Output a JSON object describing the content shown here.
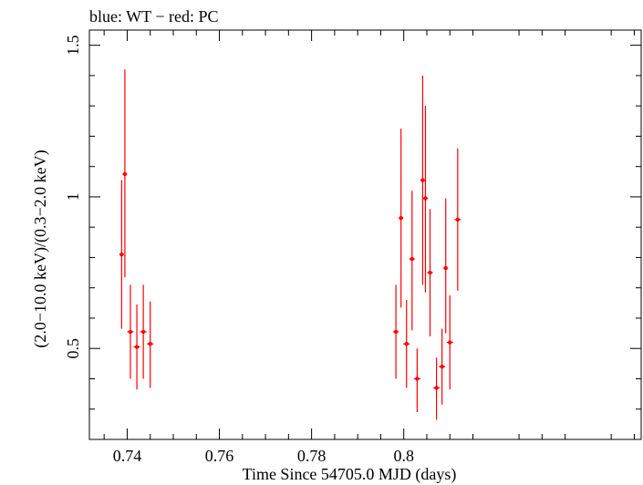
{
  "chart_data": {
    "type": "scatter",
    "title": "blue: WT − red: PC",
    "xlabel": "Time Since 54705.0 MJD (days)",
    "ylabel": "(2.0−10.0 keV)/(0.3−2.0 keV)",
    "xlim": [
      0.7318,
      0.8515
    ],
    "ylim": [
      0.2,
      1.55
    ],
    "x_ticks": [
      0.74,
      0.76,
      0.78,
      0.8
    ],
    "x_tick_labels": [
      "0.74",
      "0.76",
      "0.78",
      "0.8"
    ],
    "y_ticks": [
      0.5,
      1,
      1.5
    ],
    "y_tick_labels": [
      "0.5",
      "1",
      "1.5"
    ],
    "grid": false,
    "series": [
      {
        "color": "#ff0000",
        "points": [
          {
            "x": 0.7388,
            "y": 0.81,
            "xerr": 0.0005,
            "ylo": 0.565,
            "yhi": 1.055
          },
          {
            "x": 0.7395,
            "y": 1.075,
            "xerr": 0.0005,
            "ylo": 0.735,
            "yhi": 1.42
          },
          {
            "x": 0.7407,
            "y": 0.555,
            "xerr": 0.0007,
            "ylo": 0.4,
            "yhi": 0.71
          },
          {
            "x": 0.7421,
            "y": 0.505,
            "xerr": 0.0007,
            "ylo": 0.365,
            "yhi": 0.645
          },
          {
            "x": 0.7435,
            "y": 0.555,
            "xerr": 0.0007,
            "ylo": 0.4,
            "yhi": 0.71
          },
          {
            "x": 0.745,
            "y": 0.515,
            "xerr": 0.0007,
            "ylo": 0.37,
            "yhi": 0.655
          },
          {
            "x": 0.7983,
            "y": 0.555,
            "xerr": 0.0006,
            "ylo": 0.4,
            "yhi": 0.71
          },
          {
            "x": 0.7994,
            "y": 0.93,
            "xerr": 0.0005,
            "ylo": 0.635,
            "yhi": 1.225
          },
          {
            "x": 0.8006,
            "y": 0.515,
            "xerr": 0.0007,
            "ylo": 0.37,
            "yhi": 0.66
          },
          {
            "x": 0.8018,
            "y": 0.795,
            "xerr": 0.0006,
            "ylo": 0.56,
            "yhi": 1.02
          },
          {
            "x": 0.8029,
            "y": 0.4,
            "xerr": 0.0007,
            "ylo": 0.29,
            "yhi": 0.5
          },
          {
            "x": 0.8041,
            "y": 1.055,
            "xerr": 0.0005,
            "ylo": 0.71,
            "yhi": 1.4
          },
          {
            "x": 0.8047,
            "y": 0.995,
            "xerr": 0.0005,
            "ylo": 0.685,
            "yhi": 1.3
          },
          {
            "x": 0.8057,
            "y": 0.75,
            "xerr": 0.0006,
            "ylo": 0.54,
            "yhi": 0.96
          },
          {
            "x": 0.8071,
            "y": 0.37,
            "xerr": 0.0007,
            "ylo": 0.265,
            "yhi": 0.47
          },
          {
            "x": 0.8083,
            "y": 0.44,
            "xerr": 0.0007,
            "ylo": 0.315,
            "yhi": 0.565
          },
          {
            "x": 0.8091,
            "y": 0.765,
            "xerr": 0.0005,
            "ylo": 0.55,
            "yhi": 0.995
          },
          {
            "x": 0.81,
            "y": 0.52,
            "xerr": 0.0007,
            "ylo": 0.365,
            "yhi": 0.675
          },
          {
            "x": 0.8117,
            "y": 0.925,
            "xerr": 0.0007,
            "ylo": 0.69,
            "yhi": 1.16
          }
        ]
      }
    ]
  }
}
